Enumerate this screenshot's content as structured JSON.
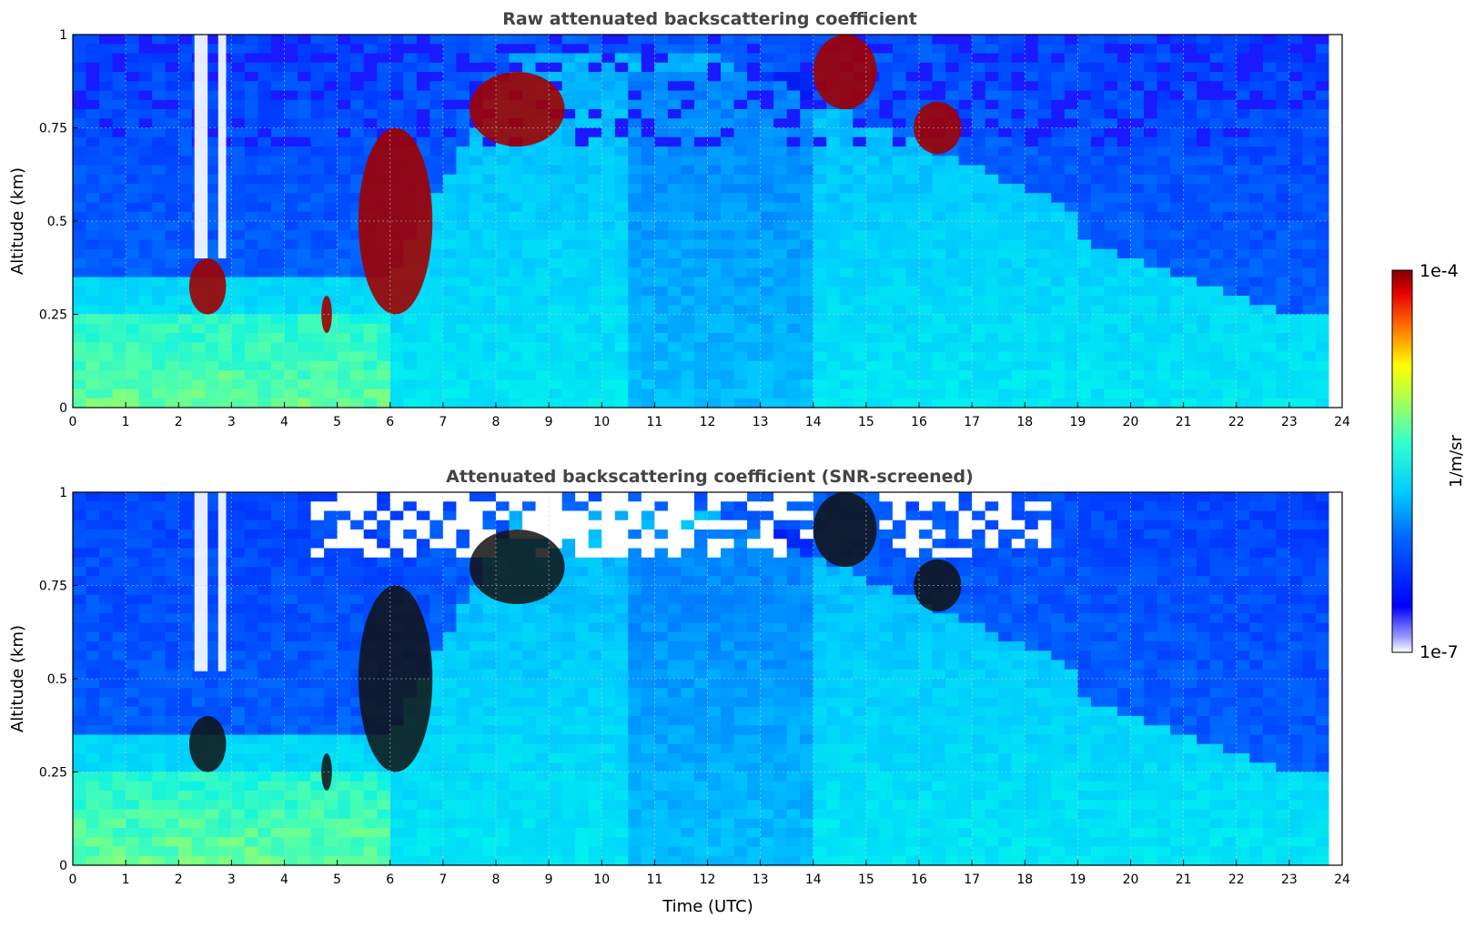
{
  "chart_data": [
    {
      "type": "heatmap",
      "title": "Raw attenuated backscattering coefficient",
      "xlabel": "",
      "ylabel": "Altitude (km)",
      "xlim": [
        0,
        24
      ],
      "ylim": [
        0,
        1
      ],
      "xticks": [
        "0",
        "1",
        "2",
        "3",
        "4",
        "5",
        "6",
        "7",
        "8",
        "9",
        "10",
        "11",
        "12",
        "13",
        "14",
        "15",
        "16",
        "17",
        "18",
        "19",
        "20",
        "21",
        "22",
        "23",
        "24"
      ],
      "yticks": [
        "0",
        "0.25",
        "0.5",
        "0.75",
        "1"
      ],
      "grid": true,
      "colorscale": "jet",
      "color_range": [
        "1e-7",
        "1e-4"
      ],
      "features": [
        {
          "t_start": 2.2,
          "t_end": 2.9,
          "alt_low": 0.25,
          "alt_high": 0.4,
          "level": "high"
        },
        {
          "t_start": 4.7,
          "t_end": 4.9,
          "alt_low": 0.2,
          "alt_high": 0.3,
          "level": "high"
        },
        {
          "t_start": 5.4,
          "t_end": 6.8,
          "alt_low": 0.25,
          "alt_high": 0.75,
          "level": "high"
        },
        {
          "t_start": 7.5,
          "t_end": 9.3,
          "alt_low": 0.7,
          "alt_high": 0.9,
          "level": "high"
        },
        {
          "t_start": 14.0,
          "t_end": 15.2,
          "alt_low": 0.8,
          "alt_high": 1.0,
          "level": "high"
        },
        {
          "t_start": 15.9,
          "t_end": 16.8,
          "alt_low": 0.68,
          "alt_high": 0.82,
          "level": "high"
        }
      ]
    },
    {
      "type": "heatmap",
      "title": "Attenuated backscattering coefficient (SNR-screened)",
      "xlabel": "Time (UTC)",
      "ylabel": "Altitude (km)",
      "xlim": [
        0,
        24
      ],
      "ylim": [
        0,
        1
      ],
      "xticks": [
        "0",
        "1",
        "2",
        "3",
        "4",
        "5",
        "6",
        "7",
        "8",
        "9",
        "10",
        "11",
        "12",
        "13",
        "14",
        "15",
        "16",
        "17",
        "18",
        "19",
        "20",
        "21",
        "22",
        "23",
        "24"
      ],
      "yticks": [
        "0",
        "0.25",
        "0.5",
        "0.75",
        "1"
      ],
      "grid": true,
      "colorscale": "jet",
      "color_range": [
        "1e-7",
        "1e-4"
      ]
    }
  ],
  "colorbar": {
    "label": "1/m/sr",
    "max_label": "1e-4",
    "min_label": "1e-7"
  }
}
